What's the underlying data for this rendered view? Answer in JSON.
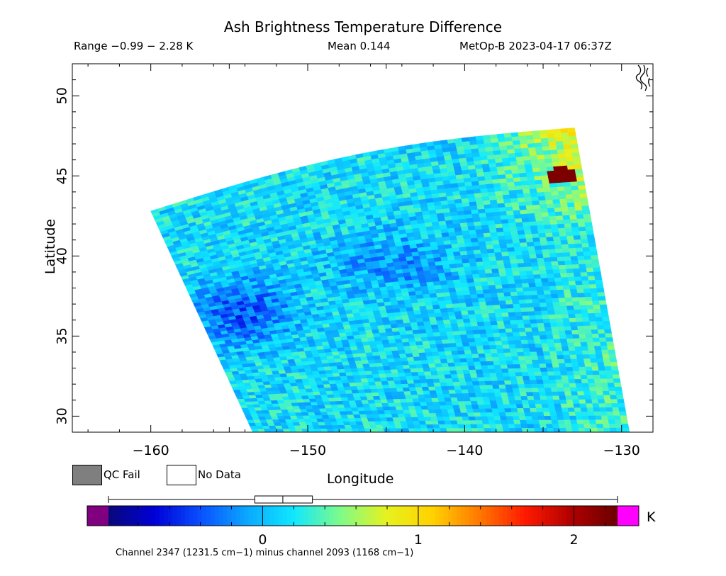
{
  "header": {
    "title": "Ash Brightness Temperature Difference",
    "range": "Range −0.99 − 2.28 K",
    "mean": "Mean 0.144",
    "satellite": "MetOp-B 2023-04-17 06:37Z"
  },
  "chart_data": {
    "type": "heatmap",
    "title": "Ash Brightness Temperature Difference",
    "xlabel": "Longitude",
    "ylabel": "Latitude",
    "xlim": [
      -165,
      -128
    ],
    "ylim": [
      29,
      52
    ],
    "x_ticks": [
      -160,
      -150,
      -140,
      -130
    ],
    "x_tick_labels": [
      "−160",
      "−150",
      "−140",
      "−130"
    ],
    "y_ticks": [
      30,
      35,
      40,
      45,
      50
    ],
    "y_tick_labels": [
      "30",
      "35",
      "40",
      "45",
      "50"
    ],
    "swath_corners": {
      "top_left": [
        -160,
        42.8
      ],
      "top_right": [
        -133,
        48.0
      ],
      "bottom_left": [
        -153.5,
        29
      ],
      "bottom_right": [
        -129.5,
        29
      ]
    },
    "value_range": [
      -0.99,
      2.28
    ],
    "mean": 0.144,
    "unit": "K",
    "colorbar": {
      "min": -0.99,
      "max": 2.28,
      "ticks": [
        0,
        1,
        2
      ],
      "tick_labels": [
        "0",
        "1",
        "2"
      ],
      "colors": [
        "#08087a",
        "#0000d8",
        "#0a50ff",
        "#0aa8ff",
        "#10e8ff",
        "#7dfb8a",
        "#e6f21f",
        "#ffd200",
        "#ff7a00",
        "#ff1a00",
        "#b00000",
        "#6a0000"
      ],
      "under_color": "#800080",
      "over_color": "#ff00ff",
      "boxplot": {
        "min": -0.99,
        "q1": -0.05,
        "median": 0.13,
        "q3": 0.32,
        "max": 2.28
      }
    },
    "coastline_label": "coast",
    "legend": [
      {
        "label": "QC Fail",
        "color": "#7f7f7f"
      },
      {
        "label": "No Data",
        "color": "#ffffff"
      }
    ]
  },
  "legend": {
    "qc_fail": "QC Fail",
    "no_data": "No Data"
  },
  "colorbar_unit": "K",
  "footnote": "Channel 2347 (1231.5 cm−1) minus channel 2093 (1168 cm−1)"
}
